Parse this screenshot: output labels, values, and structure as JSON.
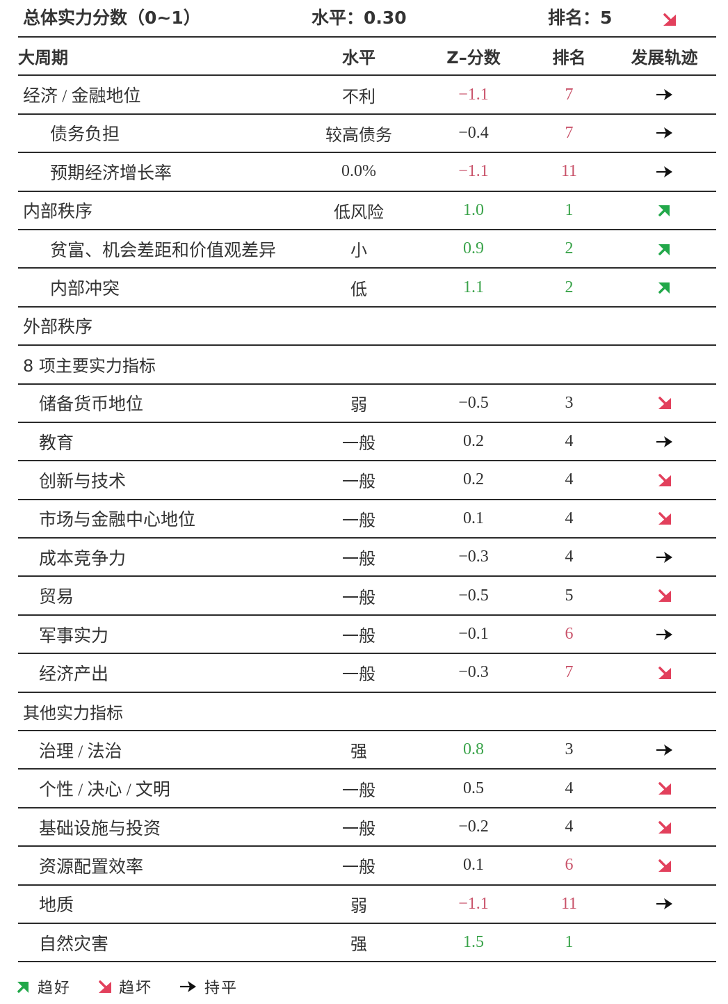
{
  "summary": {
    "overall_label": "总体实力分数（0~1）",
    "level_text": "水平：0.30",
    "rank_text": "排名：5",
    "trend": "down"
  },
  "header": {
    "col1": "大周期",
    "col2": "水平",
    "col3": "Z–分数",
    "col4": "排名",
    "col5": "发展轨迹"
  },
  "rows": [
    {
      "name": "经济 / 金融地位",
      "indent": 1,
      "level": "不利",
      "z": "−1.1",
      "z_color": "neg",
      "rank": "7",
      "rank_color": "neg",
      "trend": "flat"
    },
    {
      "name": "债务负担",
      "indent": 3,
      "level": "较高债务",
      "z": "−0.4",
      "z_color": "",
      "rank": "7",
      "rank_color": "neg",
      "trend": "flat"
    },
    {
      "name": "预期经济增长率",
      "indent": 3,
      "level": "0.0%",
      "z": "−1.1",
      "z_color": "neg",
      "rank": "11",
      "rank_color": "neg",
      "trend": "flat"
    },
    {
      "name": "内部秩序",
      "indent": 1,
      "level": "低风险",
      "z": "1.0",
      "z_color": "pos",
      "rank": "1",
      "rank_color": "pos",
      "trend": "up"
    },
    {
      "name": "贫富、机会差距和价值观差异",
      "indent": 3,
      "level": "小",
      "z": "0.9",
      "z_color": "pos",
      "rank": "2",
      "rank_color": "pos",
      "trend": "up"
    },
    {
      "name": "内部冲突",
      "indent": 3,
      "level": "低",
      "z": "1.1",
      "z_color": "pos",
      "rank": "2",
      "rank_color": "pos",
      "trend": "up"
    },
    {
      "name": "外部秩序",
      "indent": 1,
      "level": "",
      "z": "",
      "z_color": "",
      "rank": "",
      "rank_color": "",
      "trend": ""
    },
    {
      "section": "8 项主要实力指标"
    },
    {
      "name": "储备货币地位",
      "indent": 2,
      "level": "弱",
      "z": "−0.5",
      "z_color": "",
      "rank": "3",
      "rank_color": "",
      "trend": "down"
    },
    {
      "name": "教育",
      "indent": 2,
      "level": "一般",
      "z": "0.2",
      "z_color": "",
      "rank": "4",
      "rank_color": "",
      "trend": "flat"
    },
    {
      "name": "创新与技术",
      "indent": 2,
      "level": "一般",
      "z": "0.2",
      "z_color": "",
      "rank": "4",
      "rank_color": "",
      "trend": "down"
    },
    {
      "name": "市场与金融中心地位",
      "indent": 2,
      "level": "一般",
      "z": "0.1",
      "z_color": "",
      "rank": "4",
      "rank_color": "",
      "trend": "down"
    },
    {
      "name": "成本竞争力",
      "indent": 2,
      "level": "一般",
      "z": "−0.3",
      "z_color": "",
      "rank": "4",
      "rank_color": "",
      "trend": "flat"
    },
    {
      "name": "贸易",
      "indent": 2,
      "level": "一般",
      "z": "−0.5",
      "z_color": "",
      "rank": "5",
      "rank_color": "",
      "trend": "down"
    },
    {
      "name": "军事实力",
      "indent": 2,
      "level": "一般",
      "z": "−0.1",
      "z_color": "",
      "rank": "6",
      "rank_color": "neg",
      "trend": "flat"
    },
    {
      "name": "经济产出",
      "indent": 2,
      "level": "一般",
      "z": "−0.3",
      "z_color": "",
      "rank": "7",
      "rank_color": "neg",
      "trend": "down"
    },
    {
      "section": "其他实力指标"
    },
    {
      "name": "治理 / 法治",
      "indent": 2,
      "level": "强",
      "z": "0.8",
      "z_color": "pos",
      "rank": "3",
      "rank_color": "",
      "trend": "flat"
    },
    {
      "name": "个性 / 决心 / 文明",
      "indent": 2,
      "level": "一般",
      "z": "0.5",
      "z_color": "",
      "rank": "4",
      "rank_color": "",
      "trend": "down"
    },
    {
      "name": "基础设施与投资",
      "indent": 2,
      "level": "一般",
      "z": "−0.2",
      "z_color": "",
      "rank": "4",
      "rank_color": "",
      "trend": "down"
    },
    {
      "name": "资源配置效率",
      "indent": 2,
      "level": "一般",
      "z": "0.1",
      "z_color": "",
      "rank": "6",
      "rank_color": "neg",
      "trend": "down"
    },
    {
      "name": "地质",
      "indent": 2,
      "level": "弱",
      "z": "−1.1",
      "z_color": "neg",
      "rank": "11",
      "rank_color": "neg",
      "trend": "flat"
    },
    {
      "name": "自然灾害",
      "indent": 2,
      "level": "强",
      "z": "1.5",
      "z_color": "pos",
      "rank": "1",
      "rank_color": "pos",
      "trend": ""
    }
  ],
  "legend": [
    {
      "icon": "up",
      "label": "趋好"
    },
    {
      "icon": "down",
      "label": "趋坏"
    },
    {
      "icon": "flat",
      "label": "持平"
    }
  ],
  "colors": {
    "negative": "#c9536a",
    "positive": "#3aa34a",
    "up_arrow": "#22a84a",
    "down_arrow": "#e2405c",
    "flat_arrow": "#111111",
    "rule": "#2b2b2b"
  }
}
